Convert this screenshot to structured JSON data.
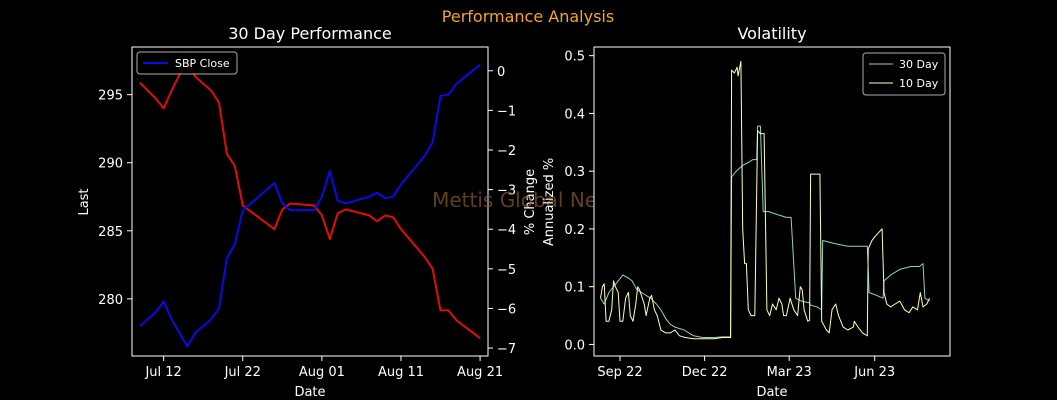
{
  "suptitle": "Performance Analysis",
  "watermark": "Mettis Global News",
  "colors": {
    "background": "#000000",
    "suptitle": "#f5a623",
    "price_line": "#0a0ae6",
    "pct_line": "#e00d0d",
    "vol30": "#8dd3c7",
    "vol10": "#ffffb3",
    "watermark": "#8a5a2b"
  },
  "chart_data": [
    {
      "type": "line",
      "title": "30 Day Performance",
      "xlabel": "Date",
      "ylabel": "Last",
      "y2label": "% Change",
      "xlim": [
        "2023-07-08",
        "2023-08-22"
      ],
      "ylim": [
        275.8,
        298.5
      ],
      "y2lim": [
        -7.2,
        0.6
      ],
      "xticks": [
        {
          "date": "2023-07-12",
          "label": "Jul 12"
        },
        {
          "date": "2023-07-22",
          "label": "Jul 22"
        },
        {
          "date": "2023-08-01",
          "label": "Aug 01"
        },
        {
          "date": "2023-08-11",
          "label": "Aug 11"
        },
        {
          "date": "2023-08-21",
          "label": "Aug 21"
        }
      ],
      "yticks": [
        280,
        285,
        290,
        295
      ],
      "y2ticks": [
        0,
        -1,
        -2,
        -3,
        -4,
        -5,
        -6,
        -7
      ],
      "legend": {
        "entries": [
          "SBP Close"
        ],
        "placement": "upper left"
      },
      "series": [
        {
          "name": "SBP Close",
          "axis": "left",
          "points": [
            [
              "2023-07-09",
              278.0
            ],
            [
              "2023-07-11",
              279.0
            ],
            [
              "2023-07-12",
              279.8
            ],
            [
              "2023-07-13",
              278.5
            ],
            [
              "2023-07-14",
              277.5
            ],
            [
              "2023-07-15",
              276.5
            ],
            [
              "2023-07-16",
              277.5
            ],
            [
              "2023-07-18",
              278.5
            ],
            [
              "2023-07-19",
              279.3
            ],
            [
              "2023-07-20",
              283.0
            ],
            [
              "2023-07-21",
              284.0
            ],
            [
              "2023-07-22",
              286.5
            ],
            [
              "2023-07-23",
              287.0
            ],
            [
              "2023-07-24",
              287.5
            ],
            [
              "2023-07-25",
              288.0
            ],
            [
              "2023-07-26",
              288.5
            ],
            [
              "2023-07-27",
              287.0
            ],
            [
              "2023-07-28",
              286.5
            ],
            [
              "2023-07-31",
              286.5
            ],
            [
              "2023-08-01",
              287.5
            ],
            [
              "2023-08-02",
              289.4
            ],
            [
              "2023-08-03",
              287.2
            ],
            [
              "2023-08-04",
              287.0
            ],
            [
              "2023-08-07",
              287.5
            ],
            [
              "2023-08-08",
              287.8
            ],
            [
              "2023-08-09",
              287.4
            ],
            [
              "2023-08-10",
              287.5
            ],
            [
              "2023-08-11",
              288.4
            ],
            [
              "2023-08-14",
              290.5
            ],
            [
              "2023-08-15",
              291.5
            ],
            [
              "2023-08-16",
              294.9
            ],
            [
              "2023-08-17",
              295.0
            ],
            [
              "2023-08-18",
              295.8
            ],
            [
              "2023-08-21",
              297.2
            ]
          ]
        },
        {
          "name": "% Change",
          "axis": "right",
          "points": [
            [
              "2023-07-09",
              -0.3
            ],
            [
              "2023-07-11",
              -0.7
            ],
            [
              "2023-07-12",
              -0.95
            ],
            [
              "2023-07-13",
              -0.5
            ],
            [
              "2023-07-14",
              -0.1
            ],
            [
              "2023-07-15",
              0.25
            ],
            [
              "2023-07-16",
              -0.15
            ],
            [
              "2023-07-18",
              -0.5
            ],
            [
              "2023-07-19",
              -0.8
            ],
            [
              "2023-07-20",
              -2.1
            ],
            [
              "2023-07-21",
              -2.4
            ],
            [
              "2023-07-22",
              -3.4
            ],
            [
              "2023-07-23",
              -3.55
            ],
            [
              "2023-07-24",
              -3.7
            ],
            [
              "2023-07-25",
              -3.85
            ],
            [
              "2023-07-26",
              -4.0
            ],
            [
              "2023-07-27",
              -3.5
            ],
            [
              "2023-07-28",
              -3.35
            ],
            [
              "2023-07-31",
              -3.4
            ],
            [
              "2023-08-01",
              -3.65
            ],
            [
              "2023-08-02",
              -4.25
            ],
            [
              "2023-08-03",
              -3.6
            ],
            [
              "2023-08-04",
              -3.5
            ],
            [
              "2023-08-07",
              -3.65
            ],
            [
              "2023-08-08",
              -3.8
            ],
            [
              "2023-08-09",
              -3.65
            ],
            [
              "2023-08-10",
              -3.7
            ],
            [
              "2023-08-11",
              -4.0
            ],
            [
              "2023-08-14",
              -4.7
            ],
            [
              "2023-08-15",
              -5.0
            ],
            [
              "2023-08-16",
              -6.05
            ],
            [
              "2023-08-17",
              -6.05
            ],
            [
              "2023-08-18",
              -6.3
            ],
            [
              "2023-08-21",
              -6.75
            ]
          ]
        }
      ]
    },
    {
      "type": "line",
      "title": "Volatility",
      "xlabel": "Date",
      "ylabel": "Annualized %",
      "xlim": [
        "2022-08-25",
        "2023-09-12"
      ],
      "ylim": [
        -0.02,
        0.515
      ],
      "xticks": [
        {
          "date": "2022-09-22",
          "label": "Sep 22"
        },
        {
          "date": "2022-12-22",
          "label": "Dec 22"
        },
        {
          "date": "2023-03-23",
          "label": "Mar 23"
        },
        {
          "date": "2023-06-23",
          "label": "Jun 23"
        }
      ],
      "yticks": [
        0.0,
        0.1,
        0.2,
        0.3,
        0.4,
        0.5
      ],
      "legend": {
        "entries": [
          "30 Day",
          "10 Day"
        ],
        "placement": "upper right"
      },
      "series": [
        {
          "name": "30 Day",
          "points": [
            [
              "2022-09-01",
              0.08
            ],
            [
              "2022-09-05",
              0.07
            ],
            [
              "2022-09-10",
              0.09
            ],
            [
              "2022-09-15",
              0.1
            ],
            [
              "2022-09-20",
              0.11
            ],
            [
              "2022-09-25",
              0.12
            ],
            [
              "2022-10-01",
              0.115
            ],
            [
              "2022-10-05",
              0.11
            ],
            [
              "2022-10-10",
              0.095
            ],
            [
              "2022-10-15",
              0.09
            ],
            [
              "2022-10-20",
              0.085
            ],
            [
              "2022-10-25",
              0.08
            ],
            [
              "2022-10-31",
              0.07
            ],
            [
              "2022-11-05",
              0.06
            ],
            [
              "2022-11-10",
              0.045
            ],
            [
              "2022-11-15",
              0.035
            ],
            [
              "2022-11-20",
              0.03
            ],
            [
              "2022-11-30",
              0.025
            ],
            [
              "2022-12-05",
              0.02
            ],
            [
              "2022-12-10",
              0.015
            ],
            [
              "2022-12-20",
              0.012
            ],
            [
              "2023-01-01",
              0.012
            ],
            [
              "2023-01-10",
              0.013
            ],
            [
              "2023-01-19",
              0.013
            ],
            [
              "2023-01-20",
              0.29
            ],
            [
              "2023-01-25",
              0.3
            ],
            [
              "2023-02-01",
              0.31
            ],
            [
              "2023-02-07",
              0.315
            ],
            [
              "2023-02-12",
              0.32
            ],
            [
              "2023-02-16",
              0.32
            ],
            [
              "2023-02-17",
              0.378
            ],
            [
              "2023-02-20",
              0.378
            ],
            [
              "2023-02-23",
              0.23
            ],
            [
              "2023-03-01",
              0.23
            ],
            [
              "2023-03-10",
              0.225
            ],
            [
              "2023-03-20",
              0.22
            ],
            [
              "2023-03-25",
              0.22
            ],
            [
              "2023-03-30",
              0.08
            ],
            [
              "2023-04-05",
              0.075
            ],
            [
              "2023-04-14",
              0.072
            ],
            [
              "2023-04-15",
              0.068
            ],
            [
              "2023-04-22",
              0.065
            ],
            [
              "2023-04-27",
              0.06
            ],
            [
              "2023-04-28",
              0.18
            ],
            [
              "2023-05-10",
              0.175
            ],
            [
              "2023-05-25",
              0.17
            ],
            [
              "2023-06-10",
              0.17
            ],
            [
              "2023-06-15",
              0.17
            ],
            [
              "2023-06-17",
              0.09
            ],
            [
              "2023-06-25",
              0.085
            ],
            [
              "2023-07-02",
              0.08
            ],
            [
              "2023-07-03",
              0.11
            ],
            [
              "2023-07-10",
              0.12
            ],
            [
              "2023-07-20",
              0.13
            ],
            [
              "2023-08-01",
              0.135
            ],
            [
              "2023-08-10",
              0.135
            ],
            [
              "2023-08-14",
              0.14
            ],
            [
              "2023-08-16",
              0.08
            ],
            [
              "2023-08-21",
              0.075
            ]
          ]
        },
        {
          "name": "10 Day",
          "points": [
            [
              "2022-09-01",
              0.08
            ],
            [
              "2022-09-03",
              0.1
            ],
            [
              "2022-09-05",
              0.105
            ],
            [
              "2022-09-07",
              0.04
            ],
            [
              "2022-09-10",
              0.04
            ],
            [
              "2022-09-13",
              0.06
            ],
            [
              "2022-09-15",
              0.11
            ],
            [
              "2022-09-17",
              0.1
            ],
            [
              "2022-09-20",
              0.09
            ],
            [
              "2022-09-22",
              0.04
            ],
            [
              "2022-09-25",
              0.04
            ],
            [
              "2022-09-28",
              0.08
            ],
            [
              "2022-10-01",
              0.09
            ],
            [
              "2022-10-03",
              0.05
            ],
            [
              "2022-10-06",
              0.04
            ],
            [
              "2022-10-09",
              0.07
            ],
            [
              "2022-10-11",
              0.1
            ],
            [
              "2022-10-13",
              0.095
            ],
            [
              "2022-10-15",
              0.085
            ],
            [
              "2022-10-18",
              0.07
            ],
            [
              "2022-10-20",
              0.05
            ],
            [
              "2022-10-24",
              0.08
            ],
            [
              "2022-10-26",
              0.085
            ],
            [
              "2022-10-29",
              0.06
            ],
            [
              "2022-11-01",
              0.05
            ],
            [
              "2022-11-05",
              0.025
            ],
            [
              "2022-11-10",
              0.02
            ],
            [
              "2022-11-15",
              0.02
            ],
            [
              "2022-11-20",
              0.025
            ],
            [
              "2022-11-25",
              0.015
            ],
            [
              "2022-12-01",
              0.012
            ],
            [
              "2022-12-10",
              0.01
            ],
            [
              "2022-12-20",
              0.01
            ],
            [
              "2023-01-01",
              0.01
            ],
            [
              "2023-01-10",
              0.012
            ],
            [
              "2023-01-19",
              0.012
            ],
            [
              "2023-01-20",
              0.475
            ],
            [
              "2023-01-23",
              0.47
            ],
            [
              "2023-01-26",
              0.48
            ],
            [
              "2023-01-27",
              0.465
            ],
            [
              "2023-01-30",
              0.49
            ],
            [
              "2023-02-01",
              0.2
            ],
            [
              "2023-02-03",
              0.14
            ],
            [
              "2023-02-05",
              0.14
            ],
            [
              "2023-02-07",
              0.06
            ],
            [
              "2023-02-10",
              0.05
            ],
            [
              "2023-02-14",
              0.05
            ],
            [
              "2023-02-17",
              0.37
            ],
            [
              "2023-02-20",
              0.365
            ],
            [
              "2023-02-24",
              0.365
            ],
            [
              "2023-02-27",
              0.06
            ],
            [
              "2023-03-02",
              0.05
            ],
            [
              "2023-03-05",
              0.07
            ],
            [
              "2023-03-09",
              0.06
            ],
            [
              "2023-03-12",
              0.08
            ],
            [
              "2023-03-15",
              0.07
            ],
            [
              "2023-03-17",
              0.05
            ],
            [
              "2023-03-20",
              0.05
            ],
            [
              "2023-03-24",
              0.08
            ],
            [
              "2023-03-28",
              0.06
            ],
            [
              "2023-04-01",
              0.05
            ],
            [
              "2023-04-04",
              0.1
            ],
            [
              "2023-04-06",
              0.095
            ],
            [
              "2023-04-08",
              0.06
            ],
            [
              "2023-04-12",
              0.04
            ],
            [
              "2023-04-14",
              0.042
            ],
            [
              "2023-04-15",
              0.295
            ],
            [
              "2023-04-20",
              0.295
            ],
            [
              "2023-04-25",
              0.295
            ],
            [
              "2023-04-27",
              0.04
            ],
            [
              "2023-05-02",
              0.025
            ],
            [
              "2023-05-05",
              0.02
            ],
            [
              "2023-05-08",
              0.06
            ],
            [
              "2023-05-12",
              0.07
            ],
            [
              "2023-05-15",
              0.05
            ],
            [
              "2023-05-20",
              0.03
            ],
            [
              "2023-05-25",
              0.025
            ],
            [
              "2023-05-31",
              0.03
            ],
            [
              "2023-06-01",
              0.04
            ],
            [
              "2023-06-05",
              0.03
            ],
            [
              "2023-06-10",
              0.02
            ],
            [
              "2023-06-15",
              0.015
            ],
            [
              "2023-06-16",
              0.165
            ],
            [
              "2023-06-20",
              0.18
            ],
            [
              "2023-06-25",
              0.19
            ],
            [
              "2023-07-01",
              0.2
            ],
            [
              "2023-07-03",
              0.09
            ],
            [
              "2023-07-06",
              0.07
            ],
            [
              "2023-07-10",
              0.065
            ],
            [
              "2023-07-15",
              0.07
            ],
            [
              "2023-07-20",
              0.075
            ],
            [
              "2023-07-25",
              0.06
            ],
            [
              "2023-07-30",
              0.055
            ],
            [
              "2023-08-03",
              0.065
            ],
            [
              "2023-08-08",
              0.06
            ],
            [
              "2023-08-11",
              0.09
            ],
            [
              "2023-08-14",
              0.065
            ],
            [
              "2023-08-18",
              0.07
            ],
            [
              "2023-08-21",
              0.08
            ]
          ]
        }
      ]
    }
  ]
}
